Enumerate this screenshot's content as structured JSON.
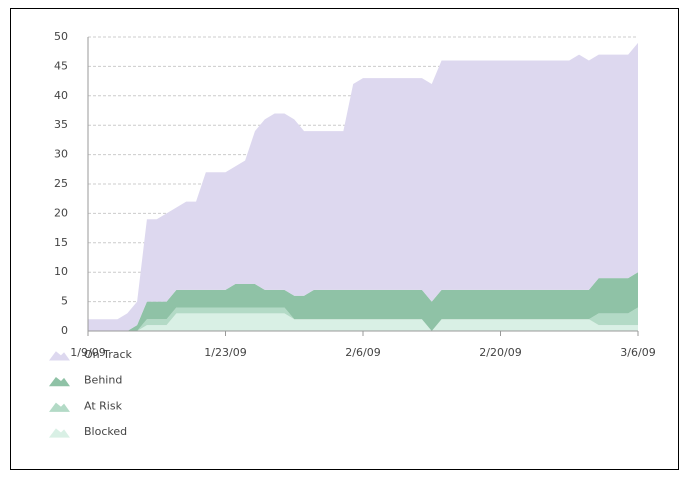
{
  "chart_data": {
    "type": "stacked-area",
    "x": [
      "1/9/09",
      "1/10/09",
      "1/11/09",
      "1/12/09",
      "1/13/09",
      "1/14/09",
      "1/15/09",
      "1/16/09",
      "1/17/09",
      "1/18/09",
      "1/19/09",
      "1/20/09",
      "1/21/09",
      "1/22/09",
      "1/23/09",
      "1/24/09",
      "1/25/09",
      "1/26/09",
      "1/27/09",
      "1/28/09",
      "1/29/09",
      "1/30/09",
      "1/31/09",
      "2/1/09",
      "2/2/09",
      "2/3/09",
      "2/4/09",
      "2/5/09",
      "2/6/09",
      "2/7/09",
      "2/8/09",
      "2/9/09",
      "2/10/09",
      "2/11/09",
      "2/12/09",
      "2/13/09",
      "2/14/09",
      "2/15/09",
      "2/16/09",
      "2/17/09",
      "2/18/09",
      "2/19/09",
      "2/20/09",
      "2/21/09",
      "2/22/09",
      "2/23/09",
      "2/24/09",
      "2/25/09",
      "2/26/09",
      "2/27/09",
      "2/28/09",
      "3/1/09",
      "3/2/09",
      "3/3/09",
      "3/4/09",
      "3/5/09",
      "3/6/09"
    ],
    "xticks": [
      "1/9/09",
      "1/23/09",
      "2/6/09",
      "2/20/09",
      "3/6/09"
    ],
    "series": [
      {
        "name": "On Track",
        "color": "#ddd8ef",
        "values": [
          2,
          2,
          2,
          2,
          3,
          4,
          14,
          14,
          15,
          14,
          15,
          15,
          20,
          20,
          20,
          20,
          21,
          26,
          29,
          30,
          30,
          30,
          28,
          27,
          27,
          27,
          27,
          35,
          36,
          36,
          36,
          36,
          36,
          36,
          36,
          37,
          39,
          39,
          39,
          39,
          39,
          39,
          39,
          39,
          39,
          39,
          39,
          39,
          39,
          39,
          40,
          39,
          38,
          38,
          38,
          38,
          39
        ]
      },
      {
        "name": "Behind",
        "color": "#8fc2a6",
        "values": [
          0,
          0,
          0,
          0,
          0,
          1,
          3,
          3,
          3,
          3,
          3,
          3,
          3,
          3,
          3,
          4,
          4,
          4,
          3,
          3,
          3,
          4,
          4,
          5,
          5,
          5,
          5,
          5,
          5,
          5,
          5,
          5,
          5,
          5,
          5,
          5,
          5,
          5,
          5,
          5,
          5,
          5,
          5,
          5,
          5,
          5,
          5,
          5,
          5,
          5,
          5,
          5,
          6,
          6,
          6,
          6,
          6
        ]
      },
      {
        "name": "At Risk",
        "color": "#b3dac6",
        "values": [
          0,
          0,
          0,
          0,
          0,
          0,
          1,
          1,
          1,
          1,
          1,
          1,
          1,
          1,
          1,
          1,
          1,
          1,
          1,
          1,
          1,
          0,
          0,
          0,
          0,
          0,
          0,
          0,
          0,
          0,
          0,
          0,
          0,
          0,
          0,
          0,
          0,
          0,
          0,
          0,
          0,
          0,
          0,
          0,
          0,
          0,
          0,
          0,
          0,
          0,
          0,
          0,
          2,
          2,
          2,
          2,
          3
        ]
      },
      {
        "name": "Blocked",
        "color": "#d9f0e5",
        "values": [
          0,
          0,
          0,
          0,
          0,
          0,
          1,
          1,
          1,
          3,
          3,
          3,
          3,
          3,
          3,
          3,
          3,
          3,
          3,
          3,
          3,
          2,
          2,
          2,
          2,
          2,
          2,
          2,
          2,
          2,
          2,
          2,
          2,
          2,
          2,
          0,
          2,
          2,
          2,
          2,
          2,
          2,
          2,
          2,
          2,
          2,
          2,
          2,
          2,
          2,
          2,
          2,
          1,
          1,
          1,
          1,
          1
        ]
      }
    ],
    "ylim": [
      0,
      50
    ],
    "yticks": [
      0,
      5,
      10,
      15,
      20,
      25,
      30,
      35,
      40,
      45,
      50
    ],
    "grid": true
  }
}
